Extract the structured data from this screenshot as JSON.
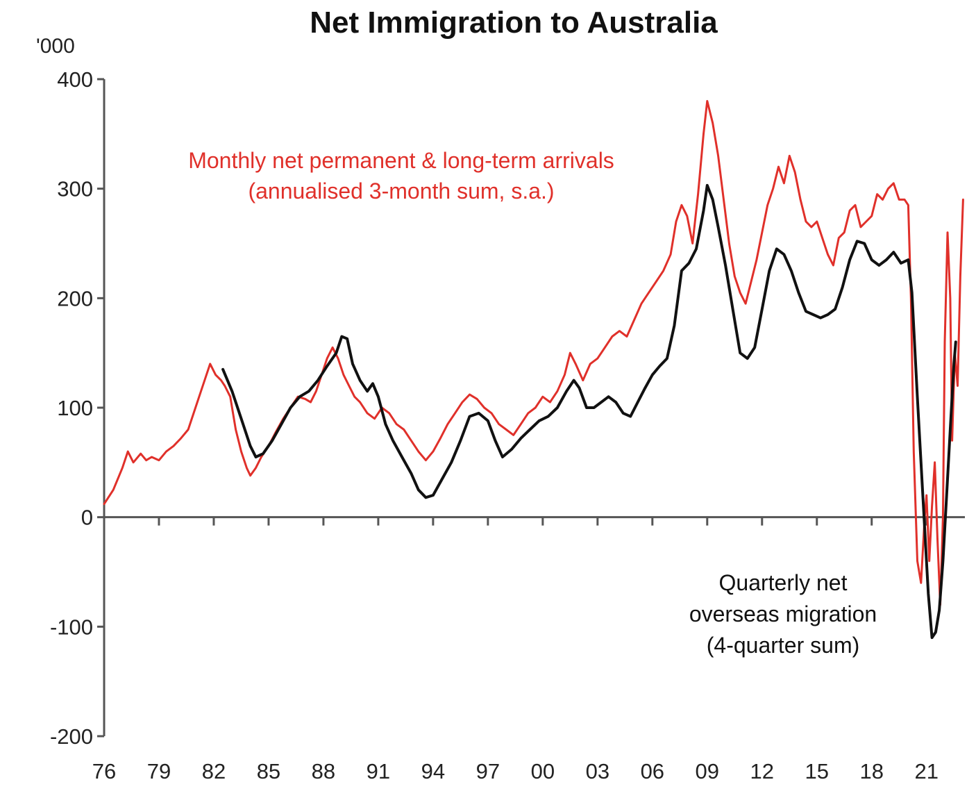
{
  "chart_data": {
    "type": "line",
    "title": "Net Immigration to Australia",
    "unit_label": "'000",
    "ylim": [
      -200,
      400
    ],
    "y_ticks": [
      "400",
      "300",
      "200",
      "100",
      "0",
      "-100",
      "-200"
    ],
    "x_tick_labels": [
      "76",
      "79",
      "82",
      "85",
      "88",
      "91",
      "94",
      "97",
      "00",
      "03",
      "06",
      "09",
      "12",
      "15",
      "18",
      "21"
    ],
    "x_tick_values": [
      1976,
      1979,
      1982,
      1985,
      1988,
      1991,
      1994,
      1997,
      2000,
      2003,
      2006,
      2009,
      2012,
      2015,
      2018,
      2021
    ],
    "xlim": [
      1976,
      2023
    ],
    "grid": false,
    "series": [
      {
        "name": "Monthly net permanent & long-term arrivals (annualised 3-month sum, s.a.)",
        "color": "#e0302a",
        "points": [
          [
            1976.0,
            12
          ],
          [
            1976.5,
            25
          ],
          [
            1977.0,
            45
          ],
          [
            1977.3,
            60
          ],
          [
            1977.6,
            50
          ],
          [
            1978.0,
            58
          ],
          [
            1978.3,
            52
          ],
          [
            1978.6,
            55
          ],
          [
            1979.0,
            52
          ],
          [
            1979.4,
            60
          ],
          [
            1979.8,
            65
          ],
          [
            1980.2,
            72
          ],
          [
            1980.6,
            80
          ],
          [
            1981.0,
            100
          ],
          [
            1981.3,
            115
          ],
          [
            1981.6,
            130
          ],
          [
            1981.8,
            140
          ],
          [
            1982.1,
            130
          ],
          [
            1982.4,
            125
          ],
          [
            1982.6,
            120
          ],
          [
            1982.9,
            110
          ],
          [
            1983.2,
            80
          ],
          [
            1983.5,
            60
          ],
          [
            1983.8,
            45
          ],
          [
            1984.0,
            38
          ],
          [
            1984.3,
            45
          ],
          [
            1984.6,
            55
          ],
          [
            1985.0,
            65
          ],
          [
            1985.4,
            78
          ],
          [
            1985.8,
            90
          ],
          [
            1986.2,
            100
          ],
          [
            1986.6,
            110
          ],
          [
            1987.0,
            108
          ],
          [
            1987.3,
            105
          ],
          [
            1987.6,
            115
          ],
          [
            1987.9,
            130
          ],
          [
            1988.2,
            145
          ],
          [
            1988.5,
            155
          ],
          [
            1988.8,
            145
          ],
          [
            1989.1,
            130
          ],
          [
            1989.4,
            120
          ],
          [
            1989.7,
            110
          ],
          [
            1990.0,
            105
          ],
          [
            1990.4,
            95
          ],
          [
            1990.8,
            90
          ],
          [
            1991.2,
            100
          ],
          [
            1991.6,
            95
          ],
          [
            1992.0,
            85
          ],
          [
            1992.4,
            80
          ],
          [
            1992.8,
            70
          ],
          [
            1993.2,
            60
          ],
          [
            1993.6,
            52
          ],
          [
            1994.0,
            60
          ],
          [
            1994.4,
            72
          ],
          [
            1994.8,
            85
          ],
          [
            1995.2,
            95
          ],
          [
            1995.6,
            105
          ],
          [
            1996.0,
            112
          ],
          [
            1996.4,
            108
          ],
          [
            1996.8,
            100
          ],
          [
            1997.2,
            95
          ],
          [
            1997.6,
            85
          ],
          [
            1998.0,
            80
          ],
          [
            1998.4,
            75
          ],
          [
            1998.8,
            85
          ],
          [
            1999.2,
            95
          ],
          [
            1999.6,
            100
          ],
          [
            2000.0,
            110
          ],
          [
            2000.4,
            105
          ],
          [
            2000.8,
            115
          ],
          [
            2001.2,
            130
          ],
          [
            2001.5,
            150
          ],
          [
            2001.8,
            140
          ],
          [
            2002.2,
            125
          ],
          [
            2002.6,
            140
          ],
          [
            2003.0,
            145
          ],
          [
            2003.4,
            155
          ],
          [
            2003.8,
            165
          ],
          [
            2004.2,
            170
          ],
          [
            2004.6,
            165
          ],
          [
            2005.0,
            180
          ],
          [
            2005.4,
            195
          ],
          [
            2005.8,
            205
          ],
          [
            2006.2,
            215
          ],
          [
            2006.6,
            225
          ],
          [
            2007.0,
            240
          ],
          [
            2007.3,
            270
          ],
          [
            2007.6,
            285
          ],
          [
            2007.9,
            275
          ],
          [
            2008.2,
            250
          ],
          [
            2008.5,
            295
          ],
          [
            2008.8,
            350
          ],
          [
            2009.0,
            380
          ],
          [
            2009.3,
            360
          ],
          [
            2009.6,
            330
          ],
          [
            2009.9,
            290
          ],
          [
            2010.2,
            250
          ],
          [
            2010.5,
            220
          ],
          [
            2010.8,
            205
          ],
          [
            2011.1,
            195
          ],
          [
            2011.4,
            215
          ],
          [
            2011.7,
            235
          ],
          [
            2012.0,
            260
          ],
          [
            2012.3,
            285
          ],
          [
            2012.6,
            300
          ],
          [
            2012.9,
            320
          ],
          [
            2013.2,
            305
          ],
          [
            2013.5,
            330
          ],
          [
            2013.8,
            315
          ],
          [
            2014.1,
            290
          ],
          [
            2014.4,
            270
          ],
          [
            2014.7,
            265
          ],
          [
            2015.0,
            270
          ],
          [
            2015.3,
            255
          ],
          [
            2015.6,
            240
          ],
          [
            2015.9,
            230
          ],
          [
            2016.2,
            255
          ],
          [
            2016.5,
            260
          ],
          [
            2016.8,
            280
          ],
          [
            2017.1,
            285
          ],
          [
            2017.4,
            265
          ],
          [
            2017.7,
            270
          ],
          [
            2018.0,
            275
          ],
          [
            2018.3,
            295
          ],
          [
            2018.6,
            290
          ],
          [
            2018.9,
            300
          ],
          [
            2019.2,
            305
          ],
          [
            2019.5,
            290
          ],
          [
            2019.8,
            290
          ],
          [
            2020.0,
            285
          ],
          [
            2020.15,
            200
          ],
          [
            2020.3,
            60
          ],
          [
            2020.5,
            -40
          ],
          [
            2020.7,
            -60
          ],
          [
            2020.9,
            0
          ],
          [
            2021.0,
            20
          ],
          [
            2021.15,
            -40
          ],
          [
            2021.3,
            10
          ],
          [
            2021.45,
            50
          ],
          [
            2021.6,
            -20
          ],
          [
            2021.75,
            -80
          ],
          [
            2021.9,
            0
          ],
          [
            2022.0,
            160
          ],
          [
            2022.15,
            260
          ],
          [
            2022.3,
            200
          ],
          [
            2022.4,
            70
          ],
          [
            2022.55,
            150
          ],
          [
            2022.7,
            120
          ],
          [
            2022.85,
            220
          ],
          [
            2023.0,
            290
          ]
        ]
      },
      {
        "name": "Quarterly net overseas migration (4-quarter sum)",
        "color": "#111111",
        "points": [
          [
            1982.5,
            135
          ],
          [
            1983.0,
            115
          ],
          [
            1983.5,
            90
          ],
          [
            1984.0,
            65
          ],
          [
            1984.3,
            55
          ],
          [
            1984.7,
            58
          ],
          [
            1985.2,
            70
          ],
          [
            1985.7,
            85
          ],
          [
            1986.2,
            100
          ],
          [
            1986.7,
            110
          ],
          [
            1987.2,
            115
          ],
          [
            1987.7,
            125
          ],
          [
            1988.2,
            138
          ],
          [
            1988.7,
            150
          ],
          [
            1989.0,
            165
          ],
          [
            1989.3,
            163
          ],
          [
            1989.6,
            140
          ],
          [
            1990.0,
            125
          ],
          [
            1990.4,
            115
          ],
          [
            1990.7,
            122
          ],
          [
            1991.0,
            110
          ],
          [
            1991.4,
            85
          ],
          [
            1991.8,
            70
          ],
          [
            1992.3,
            55
          ],
          [
            1992.8,
            40
          ],
          [
            1993.2,
            25
          ],
          [
            1993.6,
            18
          ],
          [
            1994.0,
            20
          ],
          [
            1994.5,
            35
          ],
          [
            1995.0,
            50
          ],
          [
            1995.5,
            70
          ],
          [
            1996.0,
            92
          ],
          [
            1996.5,
            95
          ],
          [
            1997.0,
            88
          ],
          [
            1997.4,
            70
          ],
          [
            1997.8,
            55
          ],
          [
            1998.3,
            62
          ],
          [
            1998.8,
            72
          ],
          [
            1999.3,
            80
          ],
          [
            1999.8,
            88
          ],
          [
            2000.3,
            92
          ],
          [
            2000.8,
            100
          ],
          [
            2001.3,
            115
          ],
          [
            2001.7,
            125
          ],
          [
            2002.0,
            118
          ],
          [
            2002.4,
            100
          ],
          [
            2002.8,
            100
          ],
          [
            2003.2,
            105
          ],
          [
            2003.6,
            110
          ],
          [
            2004.0,
            105
          ],
          [
            2004.4,
            95
          ],
          [
            2004.8,
            92
          ],
          [
            2005.2,
            105
          ],
          [
            2005.6,
            118
          ],
          [
            2006.0,
            130
          ],
          [
            2006.4,
            138
          ],
          [
            2006.8,
            145
          ],
          [
            2007.2,
            175
          ],
          [
            2007.6,
            225
          ],
          [
            2008.0,
            232
          ],
          [
            2008.4,
            245
          ],
          [
            2008.8,
            280
          ],
          [
            2009.0,
            303
          ],
          [
            2009.3,
            290
          ],
          [
            2009.6,
            265
          ],
          [
            2010.0,
            230
          ],
          [
            2010.4,
            190
          ],
          [
            2010.8,
            150
          ],
          [
            2011.2,
            145
          ],
          [
            2011.6,
            155
          ],
          [
            2012.0,
            190
          ],
          [
            2012.4,
            225
          ],
          [
            2012.8,
            245
          ],
          [
            2013.2,
            240
          ],
          [
            2013.6,
            225
          ],
          [
            2014.0,
            205
          ],
          [
            2014.4,
            188
          ],
          [
            2014.8,
            185
          ],
          [
            2015.2,
            182
          ],
          [
            2015.6,
            185
          ],
          [
            2016.0,
            190
          ],
          [
            2016.4,
            210
          ],
          [
            2016.8,
            235
          ],
          [
            2017.2,
            252
          ],
          [
            2017.6,
            250
          ],
          [
            2018.0,
            235
          ],
          [
            2018.4,
            230
          ],
          [
            2018.8,
            235
          ],
          [
            2019.2,
            242
          ],
          [
            2019.6,
            232
          ],
          [
            2020.0,
            235
          ],
          [
            2020.2,
            205
          ],
          [
            2020.5,
            110
          ],
          [
            2020.8,
            20
          ],
          [
            2021.1,
            -70
          ],
          [
            2021.3,
            -110
          ],
          [
            2021.5,
            -105
          ],
          [
            2021.7,
            -85
          ],
          [
            2021.9,
            -40
          ],
          [
            2022.1,
            20
          ],
          [
            2022.3,
            80
          ],
          [
            2022.5,
            140
          ],
          [
            2022.6,
            160
          ]
        ]
      }
    ],
    "annotations": {
      "red_label_line1": "Monthly net permanent & long-term arrivals",
      "red_label_line2": "(annualised 3-month sum, s.a.)",
      "black_label_line1": "Quarterly net",
      "black_label_line2": "overseas migration",
      "black_label_line3": "(4-quarter sum)"
    }
  }
}
